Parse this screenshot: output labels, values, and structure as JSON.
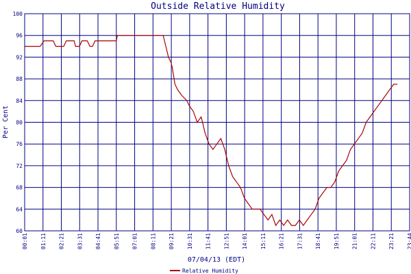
{
  "chart_data": {
    "type": "line",
    "title": "Outside Relative Humidity",
    "xlabel": "07/04/13 (EDT)",
    "ylabel": "Per Cent",
    "ylim": [
      60,
      100
    ],
    "yticks": [
      60,
      64,
      68,
      72,
      76,
      80,
      84,
      88,
      92,
      96,
      100
    ],
    "xlim": [
      "00:01",
      "23:44"
    ],
    "xtick_labels": [
      "00:01",
      "01:11",
      "02:21",
      "03:31",
      "04:41",
      "05:51",
      "07:01",
      "08:11",
      "09:21",
      "10:31",
      "11:41",
      "12:51",
      "14:01",
      "15:11",
      "16:21",
      "17:31",
      "18:41",
      "19:51",
      "21:01",
      "22:11",
      "23:21",
      "23:44"
    ],
    "grid": true,
    "legend_position": "bottom-center",
    "series": [
      {
        "name": "Relative Humidity",
        "color": "#aa0000",
        "points": [
          [
            "00:01",
            94
          ],
          [
            "01:00",
            94
          ],
          [
            "01:15",
            95
          ],
          [
            "01:50",
            95
          ],
          [
            "02:00",
            94
          ],
          [
            "02:30",
            94
          ],
          [
            "02:40",
            95
          ],
          [
            "03:10",
            95
          ],
          [
            "03:15",
            94
          ],
          [
            "03:30",
            94
          ],
          [
            "03:40",
            95
          ],
          [
            "04:00",
            95
          ],
          [
            "04:10",
            94
          ],
          [
            "04:20",
            94
          ],
          [
            "04:30",
            95
          ],
          [
            "05:51",
            95
          ],
          [
            "05:55",
            96
          ],
          [
            "08:50",
            96
          ],
          [
            "09:00",
            94
          ],
          [
            "09:10",
            92
          ],
          [
            "09:20",
            91
          ],
          [
            "09:25",
            90
          ],
          [
            "09:35",
            87
          ],
          [
            "09:45",
            86
          ],
          [
            "10:00",
            85
          ],
          [
            "10:20",
            84
          ],
          [
            "10:30",
            83
          ],
          [
            "10:45",
            82
          ],
          [
            "11:00",
            80
          ],
          [
            "11:15",
            81
          ],
          [
            "11:30",
            78
          ],
          [
            "11:45",
            76
          ],
          [
            "12:00",
            75
          ],
          [
            "12:15",
            76
          ],
          [
            "12:30",
            77
          ],
          [
            "12:45",
            75
          ],
          [
            "13:00",
            72
          ],
          [
            "13:15",
            70
          ],
          [
            "13:30",
            69
          ],
          [
            "13:45",
            68
          ],
          [
            "14:00",
            66
          ],
          [
            "14:15",
            65
          ],
          [
            "14:30",
            64
          ],
          [
            "14:45",
            64
          ],
          [
            "15:00",
            64
          ],
          [
            "15:15",
            63
          ],
          [
            "15:30",
            62
          ],
          [
            "15:45",
            63
          ],
          [
            "16:00",
            61
          ],
          [
            "16:15",
            62
          ],
          [
            "16:30",
            61
          ],
          [
            "16:45",
            62
          ],
          [
            "17:00",
            61
          ],
          [
            "17:15",
            61
          ],
          [
            "17:30",
            62
          ],
          [
            "17:45",
            61
          ],
          [
            "18:00",
            62
          ],
          [
            "18:15",
            63
          ],
          [
            "18:30",
            64
          ],
          [
            "18:45",
            66
          ],
          [
            "19:00",
            67
          ],
          [
            "19:15",
            68
          ],
          [
            "19:30",
            68
          ],
          [
            "19:45",
            69
          ],
          [
            "20:00",
            71
          ],
          [
            "20:15",
            72
          ],
          [
            "20:30",
            73
          ],
          [
            "20:45",
            75
          ],
          [
            "21:00",
            76
          ],
          [
            "21:15",
            77
          ],
          [
            "21:30",
            78
          ],
          [
            "21:45",
            80
          ],
          [
            "22:00",
            81
          ],
          [
            "22:15",
            82
          ],
          [
            "22:30",
            83
          ],
          [
            "22:45",
            84
          ],
          [
            "23:00",
            85
          ],
          [
            "23:15",
            86
          ],
          [
            "23:30",
            87
          ],
          [
            "23:44",
            87
          ]
        ]
      }
    ]
  }
}
